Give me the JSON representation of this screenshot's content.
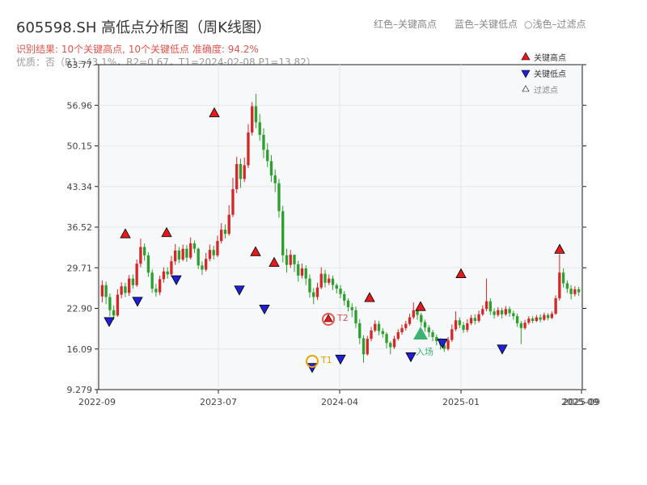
{
  "header": {
    "title": "605598.SH 高低点分析图（周K线图）",
    "legend_red": "红色–关键高点",
    "legend_blue": "蓝色–关键低点",
    "legend_light": "○浅色–过滤点",
    "result": "识别结果: 10个关键高点, 10个关键低点  准确度: 94.2%",
    "info": "优质：否（R1=43.1%，R2=0.67，T1=2024-02-08 P1=13.82）"
  },
  "legend": {
    "high": "关键高点",
    "low": "关键低点",
    "filtered": "过滤点"
  },
  "colors": {
    "up": "#d62728",
    "down": "#2ca02c",
    "high_marker": "#e41a1c",
    "low_marker": "#1f1fd6",
    "t1": "#f0a000",
    "t2": "#e5534b",
    "entry": "#3cb371"
  },
  "chart_data": {
    "type": "candlestick",
    "title": "605598.SH 高低点分析图（周K线图）",
    "y_ticks": [
      "9.279",
      "16.09",
      "22.90",
      "29.71",
      "36.52",
      "43.34",
      "50.15",
      "56.96",
      "63.77"
    ],
    "ylim": [
      9.279,
      63.77
    ],
    "x_ticks": [
      "2022-09",
      "2023-07",
      "2024-04",
      "2025-01",
      "2025-09"
    ],
    "grid": true,
    "key_highs": [
      {
        "date": "2022-11",
        "price": 34.6
      },
      {
        "date": "2023-02",
        "price": 34.8
      },
      {
        "date": "2023-06",
        "price": 54.9
      },
      {
        "date": "2023-09",
        "price": 31.6
      },
      {
        "date": "2023-10",
        "price": 29.8
      },
      {
        "date": "2024-06",
        "price": 23.9
      },
      {
        "date": "2024-09",
        "price": 22.4
      },
      {
        "date": "2025-01",
        "price": 27.9
      },
      {
        "date": "2025-06",
        "price": 32.0
      },
      {
        "date": "2024-03",
        "price": 20.5
      }
    ],
    "key_lows": [
      {
        "date": "2022-10",
        "price": 21.5
      },
      {
        "date": "2022-12",
        "price": 24.9
      },
      {
        "date": "2023-03",
        "price": 28.5
      },
      {
        "date": "2023-08",
        "price": 26.8
      },
      {
        "date": "2023-10",
        "price": 23.6
      },
      {
        "date": "2024-02",
        "price": 13.8
      },
      {
        "date": "2024-04",
        "price": 15.2
      },
      {
        "date": "2024-09",
        "price": 15.6
      },
      {
        "date": "2024-11",
        "price": 17.9
      },
      {
        "date": "2025-03",
        "price": 16.9
      }
    ],
    "annotations": [
      "T1",
      "T2",
      "入场"
    ],
    "candles": [
      [
        24.9,
        26.8,
        23.9,
        27.6
      ],
      [
        26.8,
        24.8,
        23.6,
        27.4
      ],
      [
        24.8,
        22.6,
        21.6,
        25.4
      ],
      [
        22.6,
        21.7,
        21.0,
        23.4
      ],
      [
        21.7,
        25.2,
        21.5,
        26.1
      ],
      [
        25.2,
        26.6,
        24.6,
        27.3
      ],
      [
        26.6,
        25.5,
        24.8,
        27.2
      ],
      [
        25.5,
        27.9,
        25.0,
        28.5
      ],
      [
        27.9,
        26.8,
        26.2,
        28.6
      ],
      [
        26.8,
        30.4,
        26.5,
        31.1
      ],
      [
        30.4,
        33.2,
        29.8,
        34.6
      ],
      [
        33.2,
        31.8,
        30.9,
        33.8
      ],
      [
        31.8,
        28.9,
        28.2,
        32.3
      ],
      [
        28.9,
        26.2,
        25.5,
        29.4
      ],
      [
        26.2,
        25.6,
        24.9,
        27.0
      ],
      [
        25.6,
        27.8,
        25.1,
        28.4
      ],
      [
        27.8,
        29.1,
        27.2,
        29.8
      ],
      [
        29.1,
        28.6,
        27.9,
        29.8
      ],
      [
        28.6,
        30.8,
        28.2,
        31.7
      ],
      [
        30.8,
        32.6,
        30.2,
        33.7
      ],
      [
        32.6,
        31.1,
        30.5,
        33.2
      ],
      [
        31.1,
        32.9,
        30.8,
        33.6
      ],
      [
        32.9,
        31.4,
        30.7,
        33.5
      ],
      [
        31.4,
        33.8,
        31.1,
        34.8
      ],
      [
        33.8,
        32.9,
        32.2,
        34.3
      ],
      [
        32.9,
        30.1,
        29.5,
        33.1
      ],
      [
        30.1,
        29.4,
        28.5,
        30.8
      ],
      [
        29.4,
        31.2,
        29.1,
        32.2
      ],
      [
        31.2,
        32.7,
        30.8,
        33.6
      ],
      [
        32.7,
        31.8,
        31.1,
        33.4
      ],
      [
        31.8,
        34.2,
        31.5,
        35.1
      ],
      [
        34.2,
        36.1,
        33.8,
        37.2
      ],
      [
        36.1,
        35.4,
        34.6,
        37.0
      ],
      [
        35.4,
        38.6,
        35.1,
        40.2
      ],
      [
        38.6,
        42.9,
        38.2,
        44.8
      ],
      [
        42.9,
        47.1,
        42.2,
        48.3
      ],
      [
        47.1,
        44.6,
        43.1,
        48.0
      ],
      [
        44.6,
        46.9,
        44.1,
        48.2
      ],
      [
        46.9,
        52.4,
        46.4,
        53.8
      ],
      [
        52.4,
        56.8,
        51.9,
        57.5
      ],
      [
        56.8,
        54.1,
        53.1,
        58.9
      ],
      [
        54.1,
        52.0,
        51.0,
        55.5
      ],
      [
        52.0,
        49.5,
        48.1,
        53.1
      ],
      [
        49.5,
        47.6,
        46.6,
        50.6
      ],
      [
        47.6,
        45.2,
        44.1,
        48.6
      ],
      [
        45.2,
        43.9,
        42.4,
        46.2
      ],
      [
        43.9,
        39.2,
        38.1,
        44.6
      ],
      [
        39.2,
        31.8,
        30.6,
        40.1
      ],
      [
        31.8,
        30.2,
        28.9,
        32.9
      ],
      [
        30.2,
        31.9,
        29.7,
        32.7
      ],
      [
        31.9,
        30.3,
        29.0,
        31.6
      ],
      [
        30.3,
        28.4,
        27.4,
        30.9
      ],
      [
        28.4,
        29.6,
        27.9,
        30.4
      ],
      [
        29.6,
        27.9,
        26.8,
        30.1
      ],
      [
        27.9,
        25.6,
        24.7,
        28.6
      ],
      [
        25.6,
        24.8,
        23.6,
        26.3
      ],
      [
        24.8,
        26.4,
        24.3,
        27.2
      ],
      [
        26.4,
        28.7,
        26.1,
        29.8
      ],
      [
        28.7,
        27.2,
        26.4,
        29.4
      ],
      [
        27.2,
        27.9,
        26.8,
        28.6
      ],
      [
        27.9,
        26.8,
        26.0,
        28.4
      ],
      [
        26.8,
        26.2,
        25.4,
        27.1
      ],
      [
        26.2,
        25.3,
        24.6,
        26.8
      ],
      [
        25.3,
        24.2,
        23.4,
        25.8
      ],
      [
        24.2,
        23.1,
        22.4,
        24.6
      ],
      [
        23.1,
        22.6,
        21.4,
        23.8
      ],
      [
        22.6,
        20.4,
        19.6,
        23.2
      ],
      [
        20.4,
        17.9,
        16.9,
        21.1
      ],
      [
        17.9,
        15.2,
        13.8,
        18.4
      ],
      [
        15.2,
        17.8,
        15.0,
        18.3
      ],
      [
        17.8,
        19.2,
        17.4,
        19.8
      ],
      [
        19.2,
        20.3,
        18.9,
        20.9
      ],
      [
        20.3,
        19.1,
        18.4,
        20.8
      ],
      [
        19.1,
        18.6,
        18.0,
        19.6
      ],
      [
        18.6,
        17.1,
        16.2,
        18.9
      ],
      [
        17.1,
        16.4,
        15.2,
        17.4
      ],
      [
        16.4,
        17.8,
        16.1,
        18.3
      ],
      [
        17.8,
        18.9,
        17.5,
        19.4
      ],
      [
        18.9,
        19.6,
        18.5,
        20.2
      ],
      [
        19.6,
        20.3,
        19.2,
        20.8
      ],
      [
        20.3,
        21.4,
        20.0,
        22.0
      ],
      [
        21.4,
        22.6,
        21.1,
        23.9
      ],
      [
        22.6,
        21.8,
        21.0,
        23.1
      ],
      [
        21.8,
        20.6,
        19.9,
        22.2
      ],
      [
        20.6,
        19.7,
        19.0,
        21.0
      ],
      [
        19.7,
        18.9,
        18.1,
        20.1
      ],
      [
        18.9,
        18.1,
        17.4,
        19.3
      ],
      [
        18.1,
        17.4,
        16.7,
        18.5
      ],
      [
        17.4,
        16.8,
        16.0,
        17.9
      ],
      [
        16.8,
        16.1,
        15.6,
        17.2
      ],
      [
        16.1,
        17.6,
        15.8,
        18.1
      ],
      [
        17.6,
        19.4,
        17.3,
        20.2
      ],
      [
        19.4,
        20.9,
        19.1,
        22.4
      ],
      [
        20.9,
        20.1,
        19.6,
        21.4
      ],
      [
        20.1,
        19.3,
        18.8,
        20.6
      ],
      [
        19.3,
        20.4,
        18.9,
        21.1
      ],
      [
        20.4,
        21.3,
        20.1,
        21.8
      ],
      [
        21.3,
        20.8,
        20.2,
        21.9
      ],
      [
        20.8,
        21.9,
        20.5,
        22.5
      ],
      [
        21.9,
        22.8,
        21.6,
        23.4
      ],
      [
        22.8,
        24.1,
        22.4,
        27.9
      ],
      [
        24.1,
        22.4,
        21.8,
        24.6
      ],
      [
        22.4,
        21.8,
        21.2,
        22.9
      ],
      [
        21.8,
        22.6,
        21.5,
        23.1
      ],
      [
        22.6,
        21.9,
        21.2,
        23.0
      ],
      [
        21.9,
        22.8,
        21.6,
        23.3
      ],
      [
        22.8,
        22.1,
        21.5,
        23.2
      ],
      [
        22.1,
        21.6,
        21.0,
        22.5
      ],
      [
        21.6,
        20.4,
        19.8,
        22.0
      ],
      [
        20.4,
        19.6,
        16.9,
        20.8
      ],
      [
        19.6,
        20.5,
        19.3,
        21.0
      ],
      [
        20.5,
        21.2,
        20.2,
        21.6
      ],
      [
        21.2,
        20.8,
        20.4,
        21.6
      ],
      [
        20.8,
        21.4,
        20.6,
        21.8
      ],
      [
        21.4,
        21.0,
        20.6,
        21.9
      ],
      [
        21.0,
        21.8,
        20.8,
        22.2
      ],
      [
        21.8,
        21.3,
        20.9,
        22.1
      ],
      [
        21.3,
        22.0,
        21.1,
        22.4
      ],
      [
        22.0,
        24.6,
        21.8,
        25.1
      ],
      [
        24.6,
        28.9,
        24.2,
        32.0
      ],
      [
        28.9,
        27.1,
        26.4,
        29.6
      ],
      [
        27.1,
        26.2,
        25.5,
        27.6
      ],
      [
        26.2,
        25.3,
        24.4,
        26.8
      ],
      [
        25.3,
        26.1,
        24.9,
        26.6
      ],
      [
        26.1,
        25.6,
        25.0,
        26.5
      ]
    ]
  }
}
